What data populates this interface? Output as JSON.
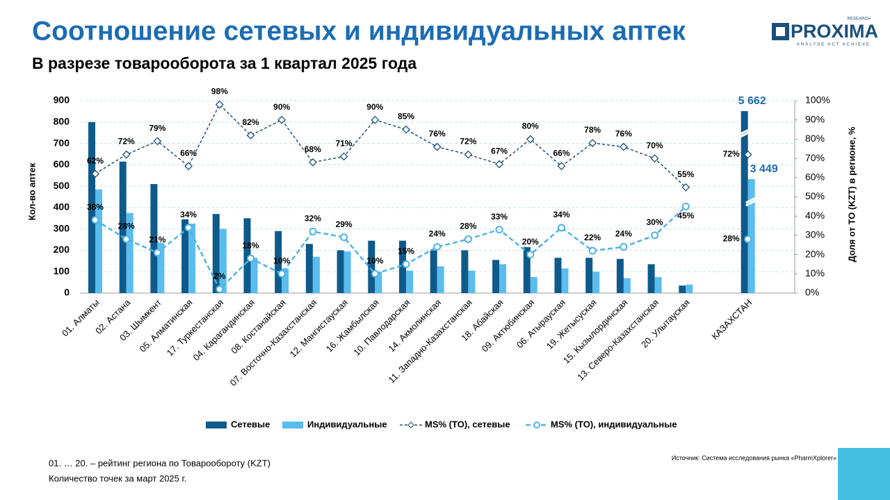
{
  "chart_data": {
    "type": "bar_line",
    "title": "Соотношение сетевых и индивидуальных аптек",
    "subtitle": "В разрезе товарооборота за 1 квартал 2025 года",
    "y_label": "Кол-во аптек",
    "y2_label": "Доля от ТО (KZT) в регионе, %",
    "categories": [
      "01. Алматы",
      "02. Астана",
      "03. Шымкент",
      "05. Алматинская",
      "17. Туркестанская",
      "04. Карагандинская",
      "08. Костанайская",
      "07. Восточно-Казахстанская",
      "12. Мангистауская",
      "16. Жамбылская",
      "10. Павлодарская",
      "14. Акмолинская",
      "11. Западно-Казахстанская",
      "18. Абайская",
      "09. Актюбинская",
      "06. Атырауская",
      "19. Жетысуская",
      "15. Кызылординская",
      "13. Северо-Казахстанская",
      "20. Улытауская",
      "КАЗАХСТАН"
    ],
    "series": [
      {
        "name": "Сетевые",
        "type": "bar",
        "color": "#0e5a8a",
        "values": [
          800,
          615,
          510,
          345,
          370,
          350,
          290,
          230,
          200,
          245,
          245,
          200,
          200,
          155,
          215,
          165,
          165,
          160,
          135,
          35,
          5662
        ],
        "value_labels": [
          null,
          null,
          null,
          null,
          null,
          null,
          null,
          null,
          null,
          null,
          null,
          null,
          null,
          null,
          null,
          null,
          null,
          null,
          null,
          null,
          "5 662"
        ]
      },
      {
        "name": "Индивидуальные",
        "type": "bar",
        "color": "#5bbcee",
        "values": [
          485,
          375,
          235,
          325,
          300,
          165,
          115,
          170,
          195,
          100,
          105,
          125,
          105,
          135,
          75,
          115,
          100,
          70,
          75,
          40,
          3449
        ],
        "value_labels": [
          null,
          null,
          null,
          null,
          null,
          null,
          null,
          null,
          null,
          null,
          null,
          null,
          null,
          null,
          null,
          null,
          null,
          null,
          null,
          null,
          "3 449"
        ]
      },
      {
        "name": "MS% (TO), сетевые",
        "type": "line",
        "axis": "y2",
        "color": "#1c4f7a",
        "marker": "diamond",
        "values": [
          62,
          72,
          79,
          66,
          98,
          82,
          90,
          68,
          71,
          90,
          85,
          76,
          72,
          67,
          80,
          66,
          78,
          76,
          70,
          55,
          72
        ],
        "value_labels": [
          "62%",
          "72%",
          "79%",
          "66%",
          "98%",
          "82%",
          "90%",
          "68%",
          "71%",
          "90%",
          "85%",
          "76%",
          "72%",
          "67%",
          "80%",
          "66%",
          "78%",
          "76%",
          "70%",
          "55%",
          "72%"
        ]
      },
      {
        "name": "MS% (TO), индивидуальные",
        "type": "line",
        "axis": "y2",
        "color": "#4fb3e6",
        "marker": "circle",
        "values": [
          38,
          28,
          21,
          34,
          2,
          18,
          10,
          32,
          29,
          10,
          15,
          24,
          28,
          33,
          20,
          34,
          22,
          24,
          30,
          45,
          28
        ],
        "value_labels": [
          "38%",
          "28%",
          "21%",
          "34%",
          "2%",
          "18%",
          "10%",
          "32%",
          "29%",
          "10%",
          "15%",
          "24%",
          "28%",
          "33%",
          "20%",
          "34%",
          "22%",
          "24%",
          "30%",
          "45%",
          "28%"
        ]
      }
    ],
    "ylim": [
      0,
      900
    ],
    "yticks": [
      0,
      100,
      200,
      300,
      400,
      500,
      600,
      700,
      800,
      900
    ],
    "y2lim": [
      0,
      100
    ],
    "y2ticks": [
      {
        "value": 0,
        "label": "0%"
      },
      {
        "value": 10,
        "label": "10%"
      },
      {
        "value": 20,
        "label": "20%"
      },
      {
        "value": 30,
        "label": "30%"
      },
      {
        "value": 40,
        "label": "40%"
      },
      {
        "value": 50,
        "label": "50%"
      },
      {
        "value": 60,
        "label": "60%"
      },
      {
        "value": 70,
        "label": "70%"
      },
      {
        "value": 80,
        "label": "80%"
      },
      {
        "value": 90,
        "label": "90%"
      },
      {
        "value": 100,
        "label": "100%"
      }
    ],
    "grid": true,
    "legend": "bottom"
  },
  "logo": {
    "name": "PROXIMA",
    "tag": "RESEARCH",
    "slogan": "ANALYSE ACT ACHIEVE"
  },
  "footnotes": [
    "01. … 20. – рейтинг региона по Товарообороту (KZT)",
    "Количество точек за март 2025 г."
  ],
  "source": "Источник: Система исследования рынка «PharmXplorer»"
}
